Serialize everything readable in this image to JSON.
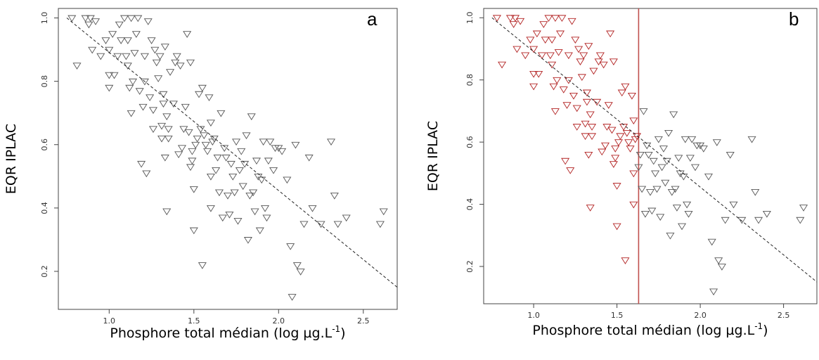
{
  "chart_data": [
    {
      "type": "scatter",
      "panel_label": "a",
      "xlabel": "Phosphore total médian (log µg.L",
      "xlabel_sup": "-1",
      "xlabel_end": ")",
      "ylabel": "EQR IPLAC",
      "xlim": [
        0.7,
        2.7
      ],
      "ylim": [
        0.08,
        1.03
      ],
      "x_ticks": [
        1.0,
        1.5,
        2.0,
        2.5
      ],
      "x_tick_labels": [
        "1.0",
        "1.5",
        "2.0",
        "2.5"
      ],
      "y_ticks": [
        0.2,
        0.4,
        0.6,
        0.8,
        1.0
      ],
      "y_tick_labels": [
        "0.2",
        "0.4",
        "0.6",
        "0.8",
        "1.0"
      ],
      "grid": false,
      "marker": "open-triangle-down",
      "point_color": "#555555",
      "highlight_color": "#b22222",
      "trendline": {
        "x": [
          0.75,
          2.7
        ],
        "y": [
          1.0,
          0.15
        ],
        "style": "dashed"
      },
      "vline": null,
      "threshold_x": null,
      "points": [
        [
          0.78,
          1.0
        ],
        [
          0.81,
          0.85
        ],
        [
          0.86,
          1.0
        ],
        [
          0.88,
          0.98
        ],
        [
          0.89,
          1.0
        ],
        [
          0.9,
          0.9
        ],
        [
          0.92,
          0.99
        ],
        [
          0.95,
          0.88
        ],
        [
          0.98,
          0.93
        ],
        [
          1.0,
          0.78
        ],
        [
          1.0,
          0.82
        ],
        [
          1.0,
          0.9
        ],
        [
          1.02,
          0.95
        ],
        [
          1.03,
          0.82
        ],
        [
          1.05,
          0.88
        ],
        [
          1.06,
          0.98
        ],
        [
          1.07,
          0.93
        ],
        [
          1.09,
          1.0
        ],
        [
          1.1,
          0.88
        ],
        [
          1.11,
          0.85
        ],
        [
          1.11,
          0.93
        ],
        [
          1.12,
          0.78
        ],
        [
          1.13,
          1.0
        ],
        [
          1.13,
          0.7
        ],
        [
          1.14,
          0.8
        ],
        [
          1.15,
          0.89
        ],
        [
          1.16,
          0.95
        ],
        [
          1.17,
          1.0
        ],
        [
          1.18,
          0.77
        ],
        [
          1.19,
          0.54
        ],
        [
          1.2,
          0.72
        ],
        [
          1.21,
          0.8
        ],
        [
          1.21,
          0.88
        ],
        [
          1.22,
          0.51
        ],
        [
          1.23,
          0.99
        ],
        [
          1.24,
          0.75
        ],
        [
          1.25,
          0.93
        ],
        [
          1.26,
          0.65
        ],
        [
          1.26,
          0.71
        ],
        [
          1.27,
          0.9
        ],
        [
          1.28,
          0.86
        ],
        [
          1.29,
          0.81
        ],
        [
          1.3,
          0.88
        ],
        [
          1.31,
          0.62
        ],
        [
          1.31,
          0.66
        ],
        [
          1.32,
          0.73
        ],
        [
          1.32,
          0.76
        ],
        [
          1.33,
          0.56
        ],
        [
          1.33,
          0.91
        ],
        [
          1.34,
          0.39
        ],
        [
          1.34,
          0.69
        ],
        [
          1.35,
          0.62
        ],
        [
          1.35,
          0.65
        ],
        [
          1.36,
          0.83
        ],
        [
          1.38,
          0.73
        ],
        [
          1.39,
          0.86
        ],
        [
          1.4,
          0.88
        ],
        [
          1.41,
          0.57
        ],
        [
          1.42,
          0.85
        ],
        [
          1.43,
          0.59
        ],
        [
          1.44,
          0.65
        ],
        [
          1.45,
          0.72
        ],
        [
          1.46,
          0.95
        ],
        [
          1.47,
          0.64
        ],
        [
          1.48,
          0.53
        ],
        [
          1.48,
          0.86
        ],
        [
          1.49,
          0.55
        ],
        [
          1.49,
          0.58
        ],
        [
          1.5,
          0.33
        ],
        [
          1.5,
          0.46
        ],
        [
          1.51,
          0.6
        ],
        [
          1.52,
          0.62
        ],
        [
          1.53,
          0.76
        ],
        [
          1.54,
          0.65
        ],
        [
          1.55,
          0.22
        ],
        [
          1.55,
          0.78
        ],
        [
          1.56,
          0.63
        ],
        [
          1.57,
          0.6
        ],
        [
          1.58,
          0.58
        ],
        [
          1.59,
          0.75
        ],
        [
          1.6,
          0.4
        ],
        [
          1.6,
          0.5
        ],
        [
          1.6,
          0.67
        ],
        [
          1.61,
          0.61
        ],
        [
          1.62,
          0.62
        ],
        [
          1.63,
          0.52
        ],
        [
          1.64,
          0.56
        ],
        [
          1.65,
          0.45
        ],
        [
          1.66,
          0.7
        ],
        [
          1.67,
          0.37
        ],
        [
          1.68,
          0.59
        ],
        [
          1.69,
          0.56
        ],
        [
          1.7,
          0.44
        ],
        [
          1.71,
          0.38
        ],
        [
          1.72,
          0.54
        ],
        [
          1.73,
          0.5
        ],
        [
          1.74,
          0.45
        ],
        [
          1.75,
          0.61
        ],
        [
          1.76,
          0.36
        ],
        [
          1.77,
          0.52
        ],
        [
          1.78,
          0.58
        ],
        [
          1.79,
          0.47
        ],
        [
          1.8,
          0.54
        ],
        [
          1.81,
          0.63
        ],
        [
          1.82,
          0.3
        ],
        [
          1.83,
          0.44
        ],
        [
          1.84,
          0.69
        ],
        [
          1.85,
          0.45
        ],
        [
          1.86,
          0.39
        ],
        [
          1.87,
          0.55
        ],
        [
          1.88,
          0.5
        ],
        [
          1.89,
          0.33
        ],
        [
          1.9,
          0.49
        ],
        [
          1.91,
          0.61
        ],
        [
          1.92,
          0.4
        ],
        [
          1.93,
          0.37
        ],
        [
          1.94,
          0.55
        ],
        [
          1.95,
          0.61
        ],
        [
          1.97,
          0.52
        ],
        [
          1.98,
          0.59
        ],
        [
          2.0,
          0.59
        ],
        [
          2.02,
          0.58
        ],
        [
          2.05,
          0.49
        ],
        [
          2.07,
          0.28
        ],
        [
          2.08,
          0.12
        ],
        [
          2.1,
          0.6
        ],
        [
          2.11,
          0.22
        ],
        [
          2.13,
          0.2
        ],
        [
          2.15,
          0.35
        ],
        [
          2.18,
          0.56
        ],
        [
          2.2,
          0.4
        ],
        [
          2.25,
          0.35
        ],
        [
          2.31,
          0.61
        ],
        [
          2.33,
          0.44
        ],
        [
          2.35,
          0.35
        ],
        [
          2.4,
          0.37
        ],
        [
          2.6,
          0.35
        ],
        [
          2.62,
          0.39
        ]
      ]
    },
    {
      "type": "scatter",
      "panel_label": "b",
      "xlabel": "Phosphore total médian (log µg.L",
      "xlabel_sup": "-1",
      "xlabel_end": ")",
      "ylabel": "EQR IPLAC",
      "xlim": [
        0.7,
        2.7
      ],
      "ylim": [
        0.08,
        1.03
      ],
      "x_ticks": [
        1.0,
        1.5,
        2.0,
        2.5
      ],
      "x_tick_labels": [
        "1.0",
        "1.5",
        "2.0",
        "2.5"
      ],
      "y_ticks": [
        0.2,
        0.4,
        0.6,
        0.8,
        1.0
      ],
      "y_tick_labels": [
        "0.2",
        "0.4",
        "0.6",
        "0.8",
        "1.0"
      ],
      "grid": false,
      "marker": "open-triangle-down",
      "point_color": "#555555",
      "highlight_color": "#b22222",
      "trendline": {
        "x": [
          0.75,
          2.7
        ],
        "y": [
          1.0,
          0.15
        ],
        "style": "dashed"
      },
      "vline": {
        "x": 1.63,
        "color": "#c0504d"
      },
      "threshold_x": 1.63,
      "points": "same as panel a"
    }
  ]
}
